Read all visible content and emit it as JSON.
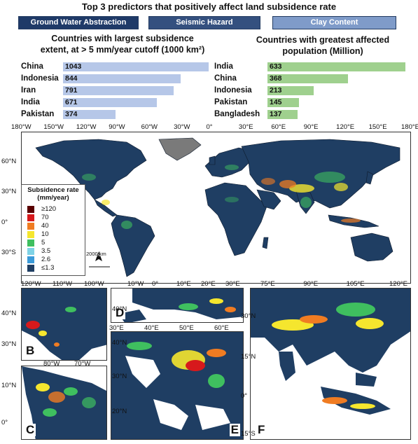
{
  "title": "Top 3 predictors that positively affect land subsidence rate",
  "predictors": [
    "Ground Water Abstraction",
    "Seismic Hazard",
    "Clay Content"
  ],
  "left_ranking": {
    "title_line1": "Countries with largest subsidence",
    "title_line2": "extent, at > 5 mm/year cutoff  (1000 km²)",
    "items": [
      {
        "country": "China",
        "value": 1043
      },
      {
        "country": "Indonesia",
        "value": 844
      },
      {
        "country": "Iran",
        "value": 791
      },
      {
        "country": "India",
        "value": 671
      },
      {
        "country": "Pakistan",
        "value": 374
      }
    ]
  },
  "right_ranking": {
    "title_line1": "Countries with greatest affected",
    "title_line2": "population (Million)",
    "items": [
      {
        "country": "India",
        "value": 633
      },
      {
        "country": "China",
        "value": 368
      },
      {
        "country": "Indonesia",
        "value": 213
      },
      {
        "country": "Pakistan",
        "value": 145
      },
      {
        "country": "Bangladesh",
        "value": 137
      }
    ]
  },
  "map_a": {
    "letter": "A",
    "lon_ticks": [
      "180°W",
      "150°W",
      "120°W",
      "90°W",
      "60°W",
      "30°W",
      "0°",
      "30°E",
      "60°E",
      "90°E",
      "120°E",
      "150°E",
      "180°E"
    ],
    "lat_ticks": [
      "60°N",
      "30°N",
      "0°",
      "30°S"
    ],
    "scale_label": "2000 km",
    "north_label": "N"
  },
  "legend": {
    "title_line1": "Subsidence rate",
    "title_line2": "(mm/year)",
    "items": [
      {
        "label": "≥120",
        "color": "#5a0000"
      },
      {
        "label": "70",
        "color": "#d7191c"
      },
      {
        "label": "40",
        "color": "#f07c22"
      },
      {
        "label": "10",
        "color": "#f5e62e"
      },
      {
        "label": "5",
        "color": "#3fbf5f"
      },
      {
        "label": "3.5",
        "color": "#7fd3e6"
      },
      {
        "label": "2.6",
        "color": "#3b9bd9"
      },
      {
        "label": "≤1.3",
        "color": "#1f3e63"
      }
    ]
  },
  "map_b": {
    "letter": "B",
    "lon_ticks": [
      "120°W",
      "110°W",
      "100°W"
    ],
    "lat_ticks": [
      "40°N",
      "30°N"
    ]
  },
  "map_c": {
    "letter": "C",
    "lon_ticks": [
      "80°W",
      "70°W"
    ],
    "lat_ticks": [
      "10°N",
      "0°"
    ]
  },
  "map_d": {
    "letter": "D",
    "lon_ticks": [
      "10°W",
      "0°",
      "10°E",
      "20°E",
      "30°E"
    ],
    "lat_ticks": [
      "40°N"
    ]
  },
  "map_e": {
    "letter": "E",
    "lon_ticks": [
      "30°E",
      "40°E",
      "50°E",
      "60°E"
    ],
    "lat_ticks": [
      "40°N",
      "30°N",
      "20°N"
    ]
  },
  "map_f": {
    "letter": "F",
    "lon_ticks": [
      "75°E",
      "90°E",
      "105°E",
      "120°E"
    ],
    "lat_ticks": [
      "30°N",
      "15°N",
      "0°",
      "15°S"
    ]
  },
  "colors": {
    "ocean": "#ffffff",
    "land": "#1f3e63",
    "ice": "#7a7a7a",
    "border": "#0d1a2c"
  }
}
